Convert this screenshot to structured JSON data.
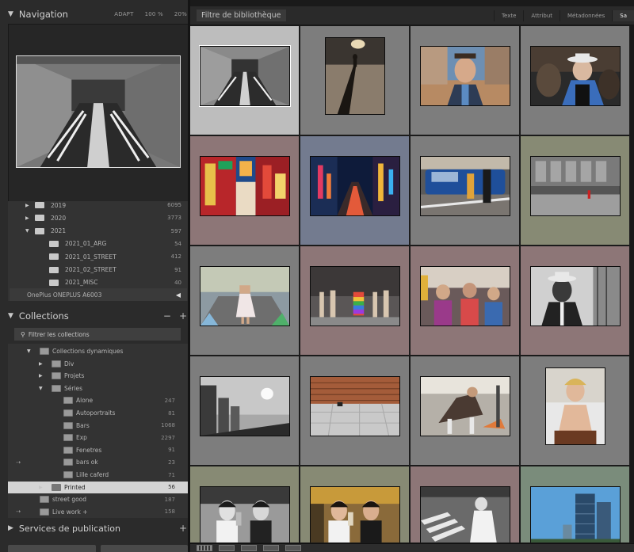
{
  "navigator": {
    "title": "Navigation",
    "zoom_options": [
      "ADAPT",
      "100 %",
      "20%"
    ]
  },
  "folders": [
    {
      "label": "2019",
      "count": "6095",
      "level": 0,
      "expanded": false
    },
    {
      "label": "2020",
      "count": "3773",
      "level": 0,
      "expanded": false
    },
    {
      "label": "2021",
      "count": "597",
      "level": 0,
      "expanded": true
    },
    {
      "label": "2021_01_ARG",
      "count": "54",
      "level": 1,
      "expanded": false
    },
    {
      "label": "2021_01_STREET",
      "count": "412",
      "level": 1,
      "expanded": false
    },
    {
      "label": "2021_02_STREET",
      "count": "91",
      "level": 1,
      "expanded": false
    },
    {
      "label": "2021_MISC",
      "count": "40",
      "level": 1,
      "expanded": false
    }
  ],
  "device": {
    "label": "OnePlus ONEPLUS A6003"
  },
  "collections": {
    "title": "Collections",
    "minus": "−",
    "plus": "+",
    "filter_label": "Filtrer les collections",
    "items": [
      {
        "label": "Collections dynamiques",
        "count": "",
        "level": 0,
        "arrow": "down",
        "icon": "folder",
        "selected": false,
        "flag": false
      },
      {
        "label": "Div",
        "count": "",
        "level": 1,
        "arrow": "right",
        "icon": "folder",
        "selected": false,
        "flag": false
      },
      {
        "label": "Projets",
        "count": "",
        "level": 1,
        "arrow": "right",
        "icon": "folder",
        "selected": false,
        "flag": false
      },
      {
        "label": "Séries",
        "count": "",
        "level": 1,
        "arrow": "down",
        "icon": "folder",
        "selected": false,
        "flag": false
      },
      {
        "label": "Alone",
        "count": "247",
        "level": 2,
        "arrow": "",
        "icon": "smart",
        "selected": false,
        "flag": false
      },
      {
        "label": "Autoportraits",
        "count": "81",
        "level": 2,
        "arrow": "",
        "icon": "smart",
        "selected": false,
        "flag": false
      },
      {
        "label": "Bars",
        "count": "1068",
        "level": 2,
        "arrow": "",
        "icon": "smart",
        "selected": false,
        "flag": false
      },
      {
        "label": "Exp",
        "count": "2297",
        "level": 2,
        "arrow": "",
        "icon": "smart",
        "selected": false,
        "flag": false
      },
      {
        "label": "Fenetres",
        "count": "91",
        "level": 2,
        "arrow": "",
        "icon": "smart",
        "selected": false,
        "flag": false
      },
      {
        "label": "bars ok",
        "count": "23",
        "level": 2,
        "arrow": "",
        "icon": "smart",
        "selected": false,
        "flag": true
      },
      {
        "label": "Lille caferd",
        "count": "71",
        "level": 2,
        "arrow": "",
        "icon": "smart",
        "selected": false,
        "flag": false
      },
      {
        "label": "Printed",
        "count": "56",
        "level": 1,
        "arrow": "right",
        "icon": "smart",
        "selected": true,
        "flag": false
      },
      {
        "label": "street good",
        "count": "187",
        "level": 0,
        "arrow": "",
        "icon": "smart",
        "selected": false,
        "flag": false
      },
      {
        "label": "Live work +",
        "count": "158",
        "level": 0,
        "arrow": "",
        "icon": "smart",
        "selected": false,
        "flag": true
      }
    ]
  },
  "publish": {
    "title": "Services de publication",
    "plus": "+"
  },
  "filterbar": {
    "title": "Filtre de bibliothèque",
    "tabs": [
      {
        "label": "Texte",
        "active": false
      },
      {
        "label": "Attribut",
        "active": false
      },
      {
        "label": "Métadonnées",
        "active": false
      },
      {
        "label": "Sa",
        "active": true
      }
    ]
  },
  "grid": {
    "cells": [
      {
        "label_color": "#bdbdbd",
        "photo": "escalator",
        "orient": "landscape"
      },
      {
        "label_color": "#7d7d7d",
        "photo": "shadow",
        "orient": "portrait"
      },
      {
        "label_color": "#7d7d7d",
        "photo": "man-smile",
        "orient": "landscape"
      },
      {
        "label_color": "#7d7d7d",
        "photo": "woman-hat",
        "orient": "landscape"
      },
      {
        "label_color": "#8d7677",
        "photo": "chinatown",
        "orient": "landscape"
      },
      {
        "label_color": "#737b8f",
        "photo": "night-street",
        "orient": "landscape"
      },
      {
        "label_color": "#7d7d7d",
        "photo": "blue-van",
        "orient": "landscape"
      },
      {
        "label_color": "#878a74",
        "photo": "building-bw",
        "orient": "landscape"
      },
      {
        "label_color": "#7d7d7d",
        "photo": "girl-dress",
        "orient": "landscape"
      },
      {
        "label_color": "#8d7677",
        "photo": "crowd-legs",
        "orient": "landscape"
      },
      {
        "label_color": "#8d7677",
        "photo": "pride-crowd",
        "orient": "landscape"
      },
      {
        "label_color": "#8d7677",
        "photo": "man-hat-bw",
        "orient": "landscape"
      },
      {
        "label_color": "#7d7d7d",
        "photo": "sun-bw",
        "orient": "landscape"
      },
      {
        "label_color": "#7d7d7d",
        "photo": "brick-wall",
        "orient": "landscape"
      },
      {
        "label_color": "#7d7d7d",
        "photo": "dancer",
        "orient": "landscape"
      },
      {
        "label_color": "#7d7d7d",
        "photo": "mannequin",
        "orient": "portrait"
      },
      {
        "label_color": "#878a74",
        "photo": "women-bw",
        "orient": "landscape"
      },
      {
        "label_color": "#878a74",
        "photo": "women-color",
        "orient": "landscape"
      },
      {
        "label_color": "#8d7677",
        "photo": "crosswalk-bw",
        "orient": "landscape"
      },
      {
        "label_color": "#7a8c7b",
        "photo": "towers",
        "orient": "landscape"
      }
    ]
  }
}
